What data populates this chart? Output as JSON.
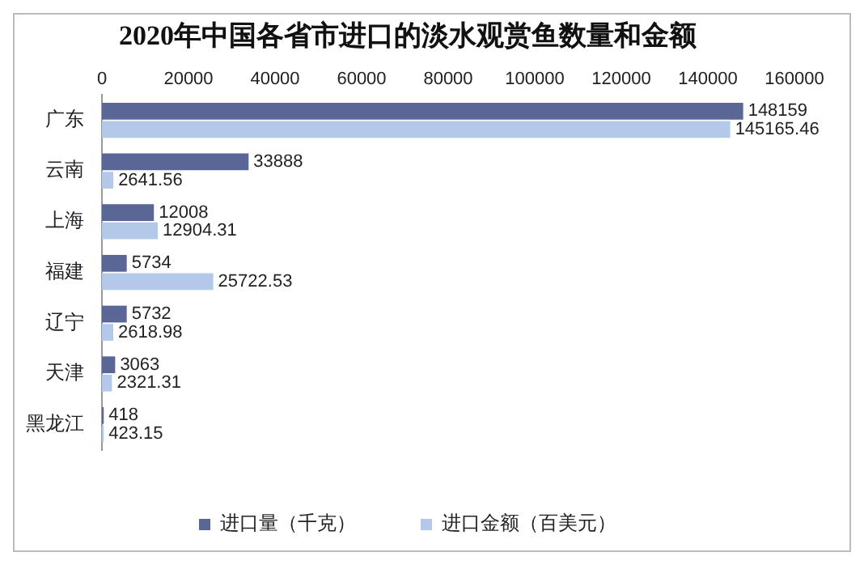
{
  "chart_data": {
    "type": "bar",
    "orientation": "horizontal",
    "title": "2020年中国各省市进口的淡水观赏鱼数量和金额",
    "categories": [
      "广东",
      "云南",
      "上海",
      "福建",
      "辽宁",
      "天津",
      "黑龙江"
    ],
    "series": [
      {
        "name": "进口量（千克）",
        "color": "#5a6796",
        "values": [
          148159,
          33888,
          12008,
          5734,
          5732,
          3063,
          418
        ]
      },
      {
        "name": "进口金额（百美元）",
        "color": "#b4c9ea",
        "values": [
          145165.46,
          2641.56,
          12904.31,
          25722.53,
          2618.98,
          2321.31,
          423.15
        ]
      }
    ],
    "xlim": [
      0,
      160000
    ],
    "xticks": [
      0,
      20000,
      40000,
      60000,
      80000,
      100000,
      120000,
      140000,
      160000
    ],
    "legend": "bottom",
    "data_labels": true
  }
}
